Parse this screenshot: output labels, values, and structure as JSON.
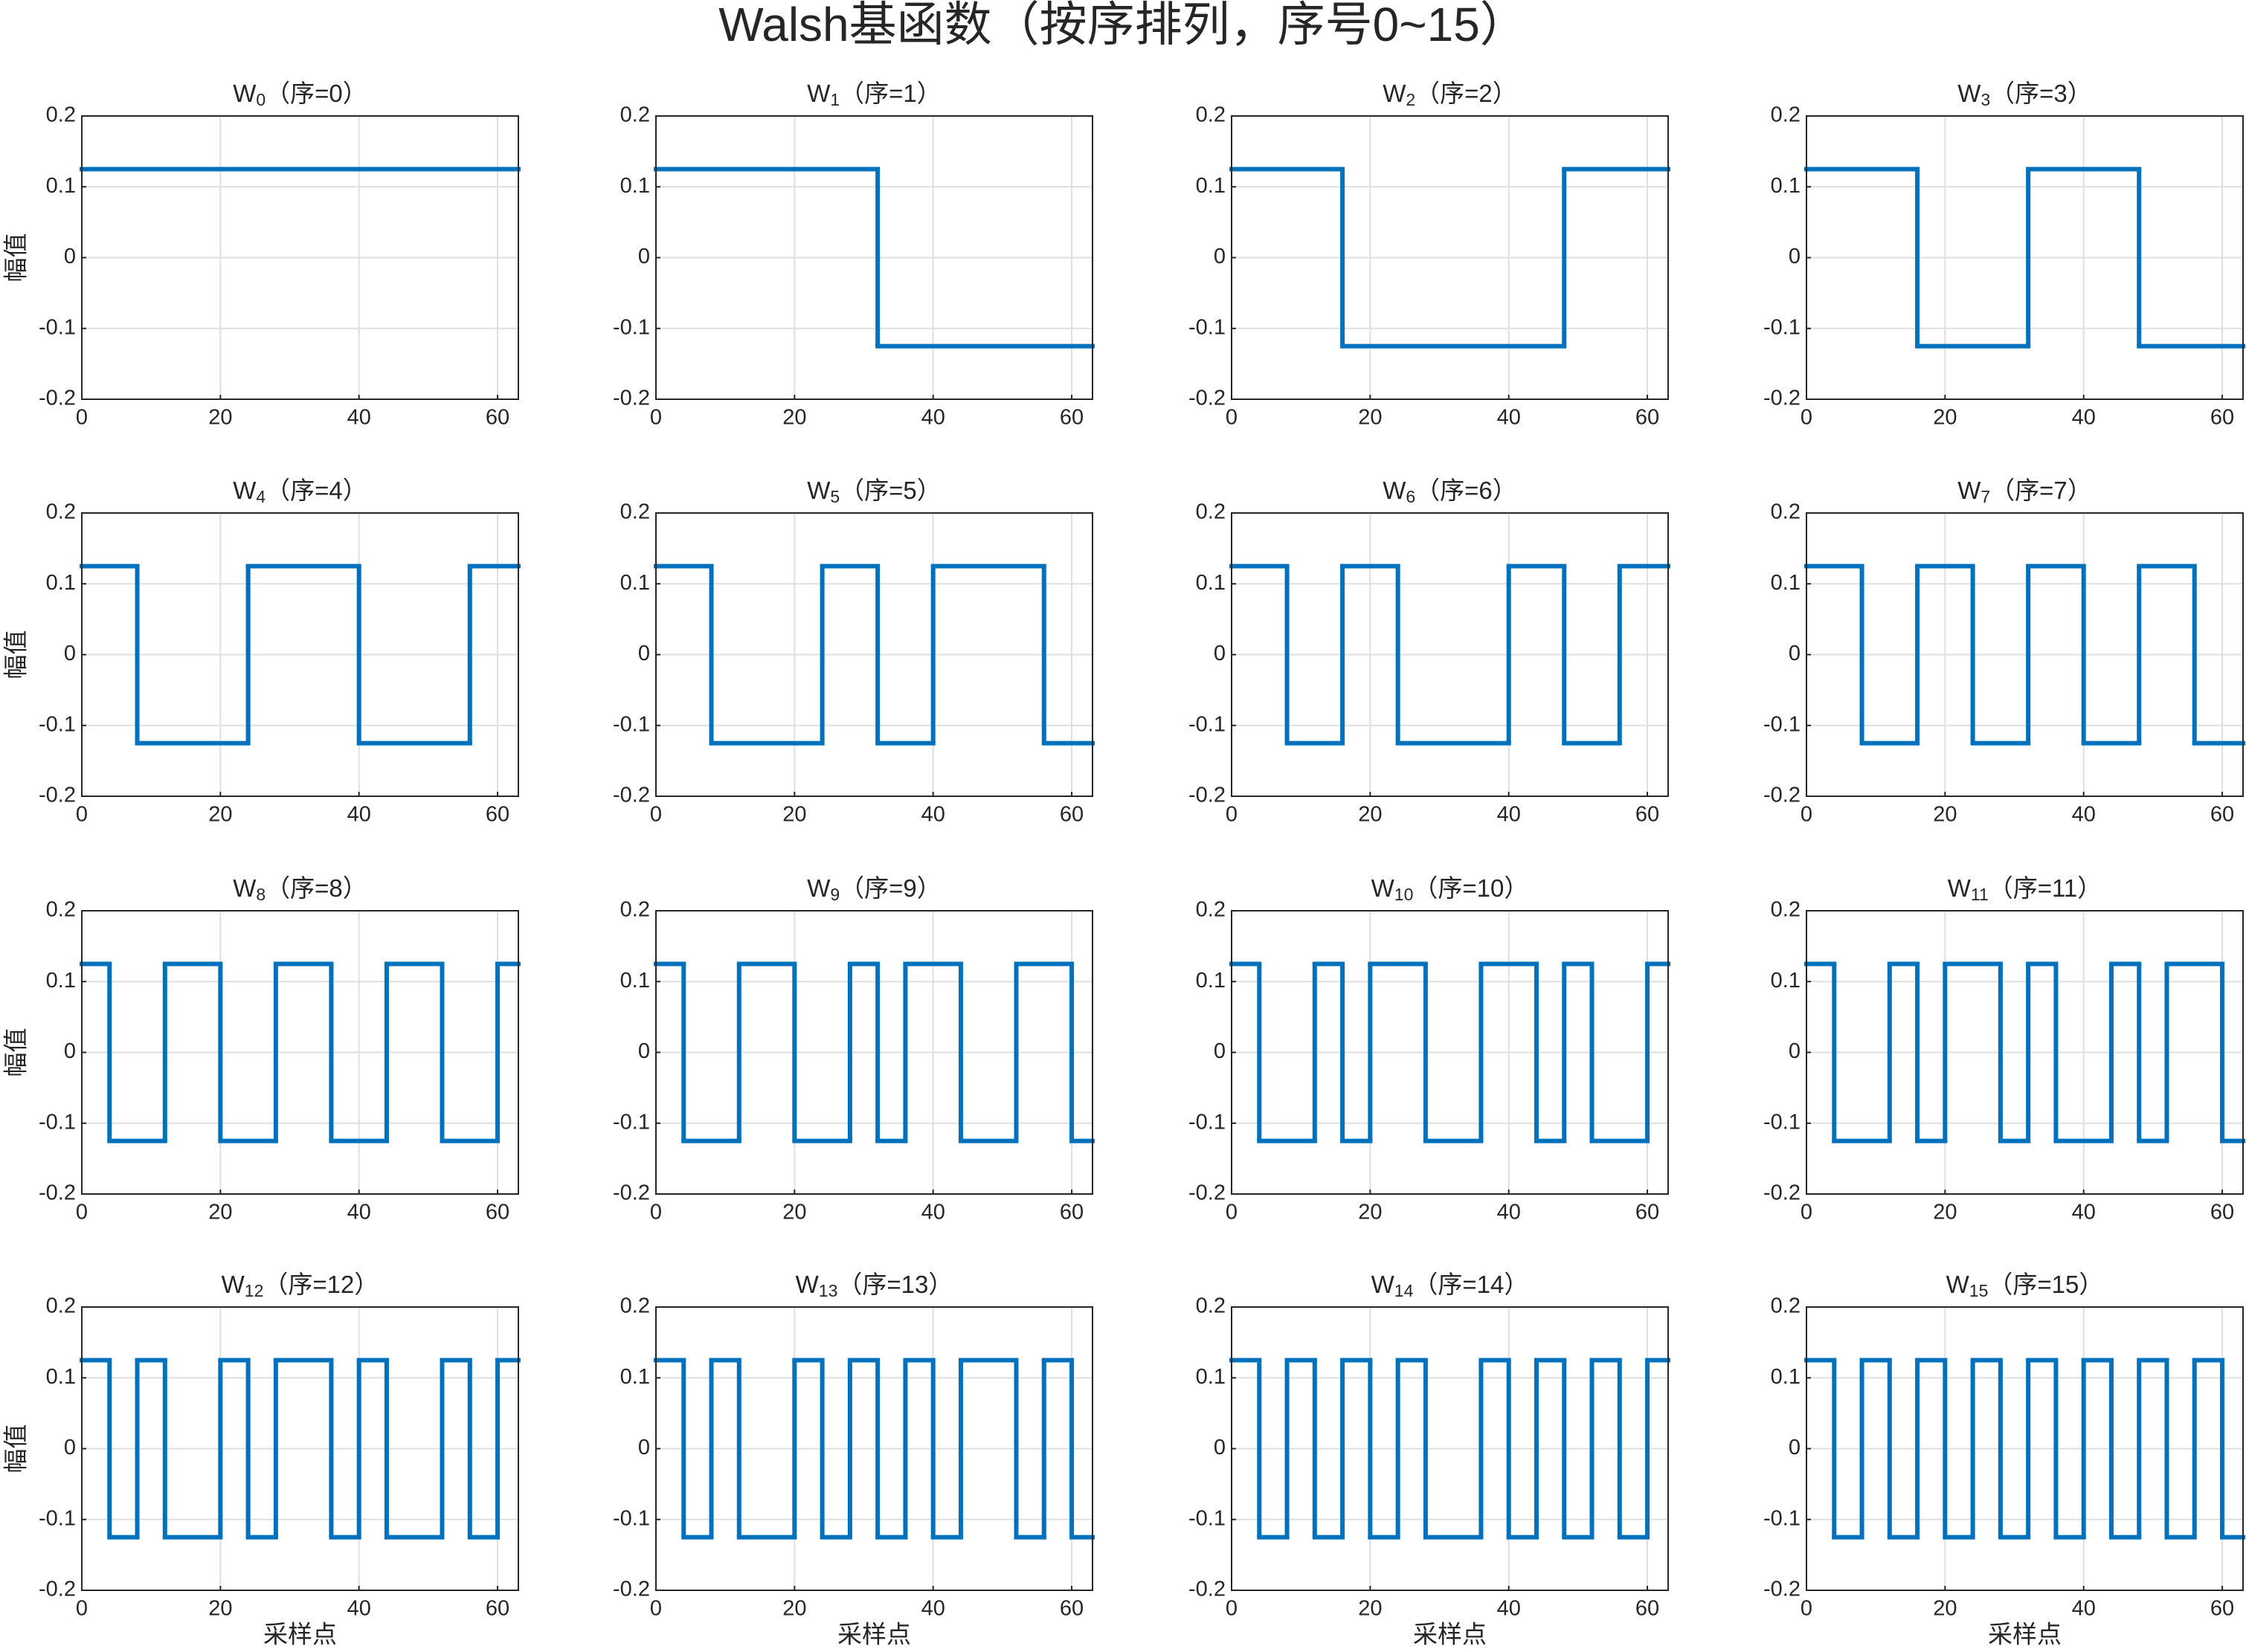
{
  "title": "Walsh基函数（按序排列，序号0~15）",
  "chart_data": [
    {
      "type": "step",
      "title_main": "W",
      "title_sub": "0",
      "title_rest": "（序=0）",
      "ylabel": "幅值",
      "edges": [
        0,
        63
      ],
      "values": [
        0.125
      ],
      "color": "#0072bd",
      "xlim": [
        0,
        63
      ],
      "ylim": [
        -0.2,
        0.2
      ],
      "xticks": [
        0,
        20,
        40,
        60
      ],
      "yticks": [
        -0.2,
        -0.1,
        0,
        0.1,
        0.2
      ],
      "grid": true
    },
    {
      "type": "step",
      "title_main": "W",
      "title_sub": "1",
      "title_rest": "（序=1）",
      "edges": [
        0,
        32,
        63
      ],
      "values": [
        0.125,
        -0.125
      ],
      "color": "#0072bd",
      "xlim": [
        0,
        63
      ],
      "ylim": [
        -0.2,
        0.2
      ],
      "xticks": [
        0,
        20,
        40,
        60
      ],
      "yticks": [
        -0.2,
        -0.1,
        0,
        0.1,
        0.2
      ],
      "grid": true
    },
    {
      "type": "step",
      "title_main": "W",
      "title_sub": "2",
      "title_rest": "（序=2）",
      "edges": [
        0,
        16,
        48,
        63
      ],
      "values": [
        0.125,
        -0.125,
        0.125
      ],
      "color": "#0072bd",
      "xlim": [
        0,
        63
      ],
      "ylim": [
        -0.2,
        0.2
      ],
      "xticks": [
        0,
        20,
        40,
        60
      ],
      "yticks": [
        -0.2,
        -0.1,
        0,
        0.1,
        0.2
      ],
      "grid": true
    },
    {
      "type": "step",
      "title_main": "W",
      "title_sub": "3",
      "title_rest": "（序=3）",
      "edges": [
        0,
        16,
        32,
        48,
        63
      ],
      "values": [
        0.125,
        -0.125,
        0.125,
        -0.125
      ],
      "color": "#0072bd",
      "xlim": [
        0,
        63
      ],
      "ylim": [
        -0.2,
        0.2
      ],
      "xticks": [
        0,
        20,
        40,
        60
      ],
      "yticks": [
        -0.2,
        -0.1,
        0,
        0.1,
        0.2
      ],
      "grid": true
    },
    {
      "type": "step",
      "title_main": "W",
      "title_sub": "4",
      "title_rest": "（序=4）",
      "ylabel": "幅值",
      "edges": [
        0,
        8,
        24,
        40,
        56,
        63
      ],
      "values": [
        0.125,
        -0.125,
        0.125,
        -0.125,
        0.125
      ],
      "color": "#0072bd",
      "xlim": [
        0,
        63
      ],
      "ylim": [
        -0.2,
        0.2
      ],
      "xticks": [
        0,
        20,
        40,
        60
      ],
      "yticks": [
        -0.2,
        -0.1,
        0,
        0.1,
        0.2
      ],
      "grid": true
    },
    {
      "type": "step",
      "title_main": "W",
      "title_sub": "5",
      "title_rest": "（序=5）",
      "edges": [
        0,
        8,
        24,
        32,
        40,
        56,
        63
      ],
      "values": [
        0.125,
        -0.125,
        0.125,
        -0.125,
        0.125,
        -0.125
      ],
      "color": "#0072bd",
      "xlim": [
        0,
        63
      ],
      "ylim": [
        -0.2,
        0.2
      ],
      "xticks": [
        0,
        20,
        40,
        60
      ],
      "yticks": [
        -0.2,
        -0.1,
        0,
        0.1,
        0.2
      ],
      "grid": true
    },
    {
      "type": "step",
      "title_main": "W",
      "title_sub": "6",
      "title_rest": "（序=6）",
      "edges": [
        0,
        8,
        16,
        24,
        40,
        48,
        56,
        63
      ],
      "values": [
        0.125,
        -0.125,
        0.125,
        -0.125,
        0.125,
        -0.125,
        0.125
      ],
      "color": "#0072bd",
      "xlim": [
        0,
        63
      ],
      "ylim": [
        -0.2,
        0.2
      ],
      "xticks": [
        0,
        20,
        40,
        60
      ],
      "yticks": [
        -0.2,
        -0.1,
        0,
        0.1,
        0.2
      ],
      "grid": true
    },
    {
      "type": "step",
      "title_main": "W",
      "title_sub": "7",
      "title_rest": "（序=7）",
      "edges": [
        0,
        8,
        16,
        24,
        32,
        40,
        48,
        56,
        63
      ],
      "values": [
        0.125,
        -0.125,
        0.125,
        -0.125,
        0.125,
        -0.125,
        0.125,
        -0.125
      ],
      "color": "#0072bd",
      "xlim": [
        0,
        63
      ],
      "ylim": [
        -0.2,
        0.2
      ],
      "xticks": [
        0,
        20,
        40,
        60
      ],
      "yticks": [
        -0.2,
        -0.1,
        0,
        0.1,
        0.2
      ],
      "grid": true
    },
    {
      "type": "step",
      "title_main": "W",
      "title_sub": "8",
      "title_rest": "（序=8）",
      "ylabel": "幅值",
      "edges": [
        0,
        4,
        12,
        20,
        28,
        36,
        44,
        52,
        60,
        63
      ],
      "values": [
        0.125,
        -0.125,
        0.125,
        -0.125,
        0.125,
        -0.125,
        0.125,
        -0.125,
        0.125
      ],
      "color": "#0072bd",
      "xlim": [
        0,
        63
      ],
      "ylim": [
        -0.2,
        0.2
      ],
      "xticks": [
        0,
        20,
        40,
        60
      ],
      "yticks": [
        -0.2,
        -0.1,
        0,
        0.1,
        0.2
      ],
      "grid": true
    },
    {
      "type": "step",
      "title_main": "W",
      "title_sub": "9",
      "title_rest": "（序=9）",
      "edges": [
        0,
        4,
        12,
        20,
        28,
        32,
        36,
        44,
        52,
        60,
        63
      ],
      "values": [
        0.125,
        -0.125,
        0.125,
        -0.125,
        0.125,
        -0.125,
        0.125,
        -0.125,
        0.125,
        -0.125
      ],
      "color": "#0072bd",
      "xlim": [
        0,
        63
      ],
      "ylim": [
        -0.2,
        0.2
      ],
      "xticks": [
        0,
        20,
        40,
        60
      ],
      "yticks": [
        -0.2,
        -0.1,
        0,
        0.1,
        0.2
      ],
      "grid": true
    },
    {
      "type": "step",
      "title_main": "W",
      "title_sub": "10",
      "title_rest": "（序=10）",
      "edges": [
        0,
        4,
        12,
        16,
        20,
        28,
        36,
        44,
        48,
        52,
        60,
        63
      ],
      "values": [
        0.125,
        -0.125,
        0.125,
        -0.125,
        0.125,
        -0.125,
        0.125,
        -0.125,
        0.125,
        -0.125,
        0.125
      ],
      "color": "#0072bd",
      "xlim": [
        0,
        63
      ],
      "ylim": [
        -0.2,
        0.2
      ],
      "xticks": [
        0,
        20,
        40,
        60
      ],
      "yticks": [
        -0.2,
        -0.1,
        0,
        0.1,
        0.2
      ],
      "grid": true
    },
    {
      "type": "step",
      "title_main": "W",
      "title_sub": "11",
      "title_rest": "（序=11）",
      "edges": [
        0,
        4,
        12,
        16,
        20,
        28,
        32,
        36,
        44,
        48,
        52,
        60,
        63
      ],
      "values": [
        0.125,
        -0.125,
        0.125,
        -0.125,
        0.125,
        -0.125,
        0.125,
        -0.125,
        0.125,
        -0.125,
        0.125,
        -0.125
      ],
      "color": "#0072bd",
      "xlim": [
        0,
        63
      ],
      "ylim": [
        -0.2,
        0.2
      ],
      "xticks": [
        0,
        20,
        40,
        60
      ],
      "yticks": [
        -0.2,
        -0.1,
        0,
        0.1,
        0.2
      ],
      "grid": true
    },
    {
      "type": "step",
      "title_main": "W",
      "title_sub": "12",
      "title_rest": "（序=12）",
      "ylabel": "幅值",
      "xlabel": "采样点",
      "edges": [
        0,
        4,
        8,
        12,
        20,
        24,
        28,
        36,
        40,
        44,
        52,
        56,
        60,
        63
      ],
      "values": [
        0.125,
        -0.125,
        0.125,
        -0.125,
        0.125,
        -0.125,
        0.125,
        -0.125,
        0.125,
        -0.125,
        0.125,
        -0.125,
        0.125
      ],
      "color": "#0072bd",
      "xlim": [
        0,
        63
      ],
      "ylim": [
        -0.2,
        0.2
      ],
      "xticks": [
        0,
        20,
        40,
        60
      ],
      "yticks": [
        -0.2,
        -0.1,
        0,
        0.1,
        0.2
      ],
      "grid": true
    },
    {
      "type": "step",
      "title_main": "W",
      "title_sub": "13",
      "title_rest": "（序=13）",
      "xlabel": "采样点",
      "edges": [
        0,
        4,
        8,
        12,
        20,
        24,
        28,
        32,
        36,
        40,
        44,
        52,
        56,
        60,
        63
      ],
      "values": [
        0.125,
        -0.125,
        0.125,
        -0.125,
        0.125,
        -0.125,
        0.125,
        -0.125,
        0.125,
        -0.125,
        0.125,
        -0.125,
        0.125,
        -0.125
      ],
      "color": "#0072bd",
      "xlim": [
        0,
        63
      ],
      "ylim": [
        -0.2,
        0.2
      ],
      "xticks": [
        0,
        20,
        40,
        60
      ],
      "yticks": [
        -0.2,
        -0.1,
        0,
        0.1,
        0.2
      ],
      "grid": true
    },
    {
      "type": "step",
      "title_main": "W",
      "title_sub": "14",
      "title_rest": "（序=14）",
      "xlabel": "采样点",
      "edges": [
        0,
        4,
        8,
        12,
        16,
        20,
        24,
        28,
        36,
        40,
        44,
        48,
        52,
        56,
        60,
        63
      ],
      "values": [
        0.125,
        -0.125,
        0.125,
        -0.125,
        0.125,
        -0.125,
        0.125,
        -0.125,
        0.125,
        -0.125,
        0.125,
        -0.125,
        0.125,
        -0.125,
        0.125
      ],
      "color": "#0072bd",
      "xlim": [
        0,
        63
      ],
      "ylim": [
        -0.2,
        0.2
      ],
      "xticks": [
        0,
        20,
        40,
        60
      ],
      "yticks": [
        -0.2,
        -0.1,
        0,
        0.1,
        0.2
      ],
      "grid": true
    },
    {
      "type": "step",
      "title_main": "W",
      "title_sub": "15",
      "title_rest": "（序=15）",
      "xlabel": "采样点",
      "edges": [
        0,
        4,
        8,
        12,
        16,
        20,
        24,
        28,
        32,
        36,
        40,
        44,
        48,
        52,
        56,
        60,
        63
      ],
      "values": [
        0.125,
        -0.125,
        0.125,
        -0.125,
        0.125,
        -0.125,
        0.125,
        -0.125,
        0.125,
        -0.125,
        0.125,
        -0.125,
        0.125,
        -0.125,
        0.125,
        -0.125
      ],
      "color": "#0072bd",
      "xlim": [
        0,
        63
      ],
      "ylim": [
        -0.2,
        0.2
      ],
      "xticks": [
        0,
        20,
        40,
        60
      ],
      "yticks": [
        -0.2,
        -0.1,
        0,
        0.1,
        0.2
      ],
      "grid": true
    }
  ]
}
